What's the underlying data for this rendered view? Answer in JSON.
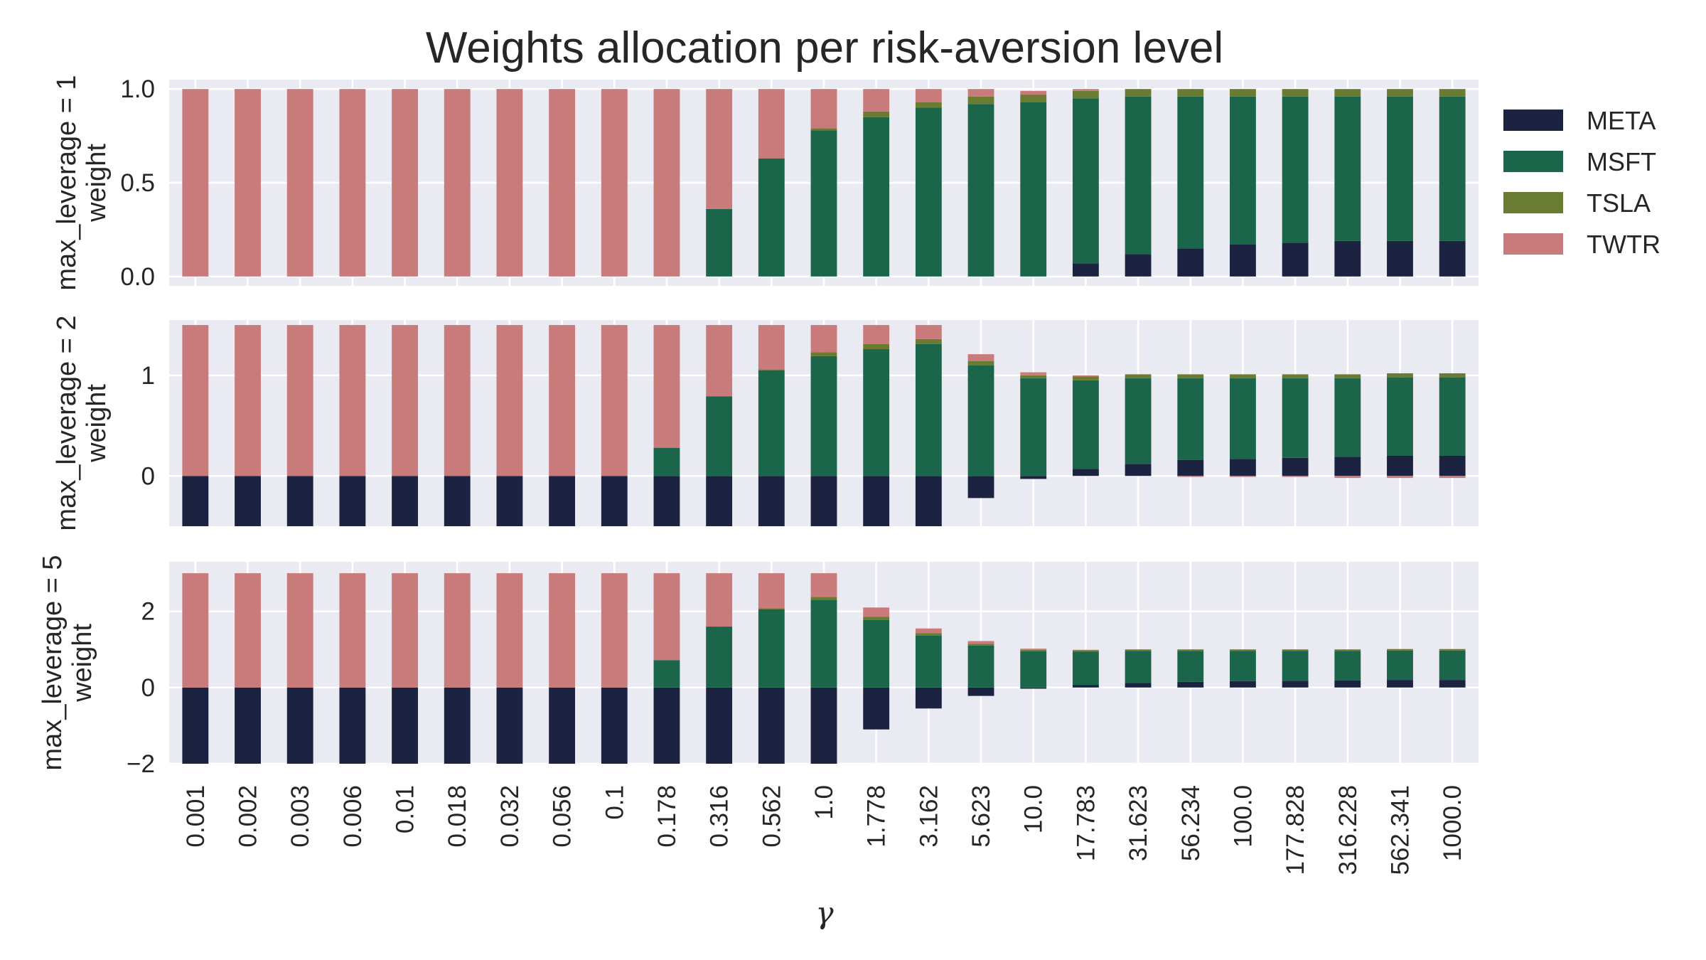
{
  "chart_data": {
    "type": "bar",
    "stacked": true,
    "title": "Weights allocation per risk-aversion level",
    "xlabel": "γ",
    "categories": [
      "0.001",
      "0.002",
      "0.003",
      "0.006",
      "0.01",
      "0.018",
      "0.032",
      "0.056",
      "0.1",
      "0.178",
      "0.316",
      "0.562",
      "1.0",
      "1.778",
      "3.162",
      "5.623",
      "10.0",
      "17.783",
      "31.623",
      "56.234",
      "100.0",
      "177.828",
      "316.228",
      "562.341",
      "1000.0"
    ],
    "colors": {
      "META": "#1b2341",
      "MSFT": "#1b654a",
      "TSLA": "#6a7b32",
      "TWTR": "#c97b7b"
    },
    "legend": {
      "placement": "right",
      "entries": [
        "META",
        "MSFT",
        "TSLA",
        "TWTR"
      ]
    },
    "grid": true,
    "panels": [
      {
        "ylabel_lines": [
          "max_leverage = 1",
          "weight"
        ],
        "ylim": [
          -0.05,
          1.05
        ],
        "yticks": [
          0.0,
          0.5,
          1.0
        ],
        "ytick_labels": [
          "0.0",
          "0.5",
          "1.0"
        ],
        "series": [
          {
            "name": "META",
            "values": [
              0,
              0,
              0,
              0,
              0,
              0,
              0,
              0,
              0,
              0,
              0,
              0,
              0,
              0,
              0,
              0,
              0,
              0.07,
              0.12,
              0.15,
              0.17,
              0.18,
              0.19,
              0.19,
              0.19
            ]
          },
          {
            "name": "MSFT",
            "values": [
              0,
              0,
              0,
              0,
              0,
              0,
              0,
              0,
              0,
              0,
              0.36,
              0.63,
              0.78,
              0.85,
              0.9,
              0.92,
              0.93,
              0.88,
              0.84,
              0.81,
              0.79,
              0.78,
              0.77,
              0.77,
              0.77
            ]
          },
          {
            "name": "TSLA",
            "values": [
              0,
              0,
              0,
              0,
              0,
              0,
              0,
              0,
              0,
              0,
              0,
              0,
              0.01,
              0.03,
              0.03,
              0.04,
              0.04,
              0.04,
              0.04,
              0.04,
              0.04,
              0.04,
              0.04,
              0.04,
              0.04
            ]
          },
          {
            "name": "TWTR",
            "values": [
              1,
              1,
              1,
              1,
              1,
              1,
              1,
              1,
              1,
              1,
              0.64,
              0.37,
              0.21,
              0.12,
              0.07,
              0.04,
              0.02,
              0.01,
              0,
              0,
              0,
              0,
              0,
              0,
              0
            ]
          }
        ]
      },
      {
        "ylabel_lines": [
          "max_leverage = 2",
          "weight"
        ],
        "ylim": [
          -0.5,
          1.55
        ],
        "yticks": [
          0,
          1
        ],
        "ytick_labels": [
          "0",
          "1"
        ],
        "series": [
          {
            "name": "META",
            "values": [
              -0.5,
              -0.5,
              -0.5,
              -0.5,
              -0.5,
              -0.5,
              -0.5,
              -0.5,
              -0.5,
              -0.5,
              -0.5,
              -0.5,
              -0.5,
              -0.5,
              -0.5,
              -0.22,
              -0.03,
              0.07,
              0.12,
              0.16,
              0.17,
              0.18,
              0.19,
              0.2,
              0.2
            ]
          },
          {
            "name": "MSFT",
            "values": [
              0,
              0,
              0,
              0,
              0,
              0,
              0,
              0,
              0,
              0.28,
              0.79,
              1.05,
              1.19,
              1.26,
              1.31,
              1.1,
              0.97,
              0.88,
              0.85,
              0.81,
              0.8,
              0.79,
              0.78,
              0.78,
              0.78
            ]
          },
          {
            "name": "TSLA",
            "values": [
              0,
              0,
              0,
              0,
              0,
              0,
              0,
              0,
              0,
              0,
              0,
              0.01,
              0.04,
              0.05,
              0.05,
              0.04,
              0.03,
              0.04,
              0.04,
              0.04,
              0.04,
              0.04,
              0.04,
              0.04,
              0.04
            ]
          },
          {
            "name": "TWTR",
            "values": [
              1.5,
              1.5,
              1.5,
              1.5,
              1.5,
              1.5,
              1.5,
              1.5,
              1.5,
              1.22,
              0.71,
              0.44,
              0.27,
              0.19,
              0.14,
              0.07,
              0.03,
              0.01,
              0,
              -0.01,
              -0.01,
              -0.01,
              -0.02,
              -0.02,
              -0.02
            ]
          }
        ]
      },
      {
        "ylabel_lines": [
          "max_leverage = 5",
          "weight"
        ],
        "ylim": [
          -2,
          3.3
        ],
        "yticks": [
          -2,
          0,
          2
        ],
        "ytick_labels": [
          "−2",
          "0",
          "2"
        ],
        "series": [
          {
            "name": "META",
            "values": [
              -2,
              -2,
              -2,
              -2,
              -2,
              -2,
              -2,
              -2,
              -2,
              -2,
              -2,
              -2,
              -2,
              -1.1,
              -0.55,
              -0.22,
              -0.03,
              0.07,
              0.12,
              0.15,
              0.17,
              0.18,
              0.19,
              0.2,
              0.2
            ]
          },
          {
            "name": "MSFT",
            "values": [
              0,
              0,
              0,
              0,
              0,
              0,
              0,
              0,
              0,
              0.72,
              1.6,
              2.05,
              2.3,
              1.77,
              1.36,
              1.1,
              0.95,
              0.87,
              0.84,
              0.81,
              0.79,
              0.78,
              0.77,
              0.77,
              0.77
            ]
          },
          {
            "name": "TSLA",
            "values": [
              0,
              0,
              0,
              0,
              0,
              0,
              0,
              0,
              0,
              0,
              0,
              0.03,
              0.08,
              0.09,
              0.07,
              0.05,
              0.04,
              0.04,
              0.04,
              0.04,
              0.04,
              0.04,
              0.04,
              0.04,
              0.04
            ]
          },
          {
            "name": "TWTR",
            "values": [
              3,
              3,
              3,
              3,
              3,
              3,
              3,
              3,
              3,
              2.28,
              1.4,
              0.92,
              0.62,
              0.24,
              0.12,
              0.07,
              0.03,
              0.01,
              0,
              0,
              0,
              0,
              0,
              0,
              0
            ]
          }
        ]
      }
    ]
  }
}
